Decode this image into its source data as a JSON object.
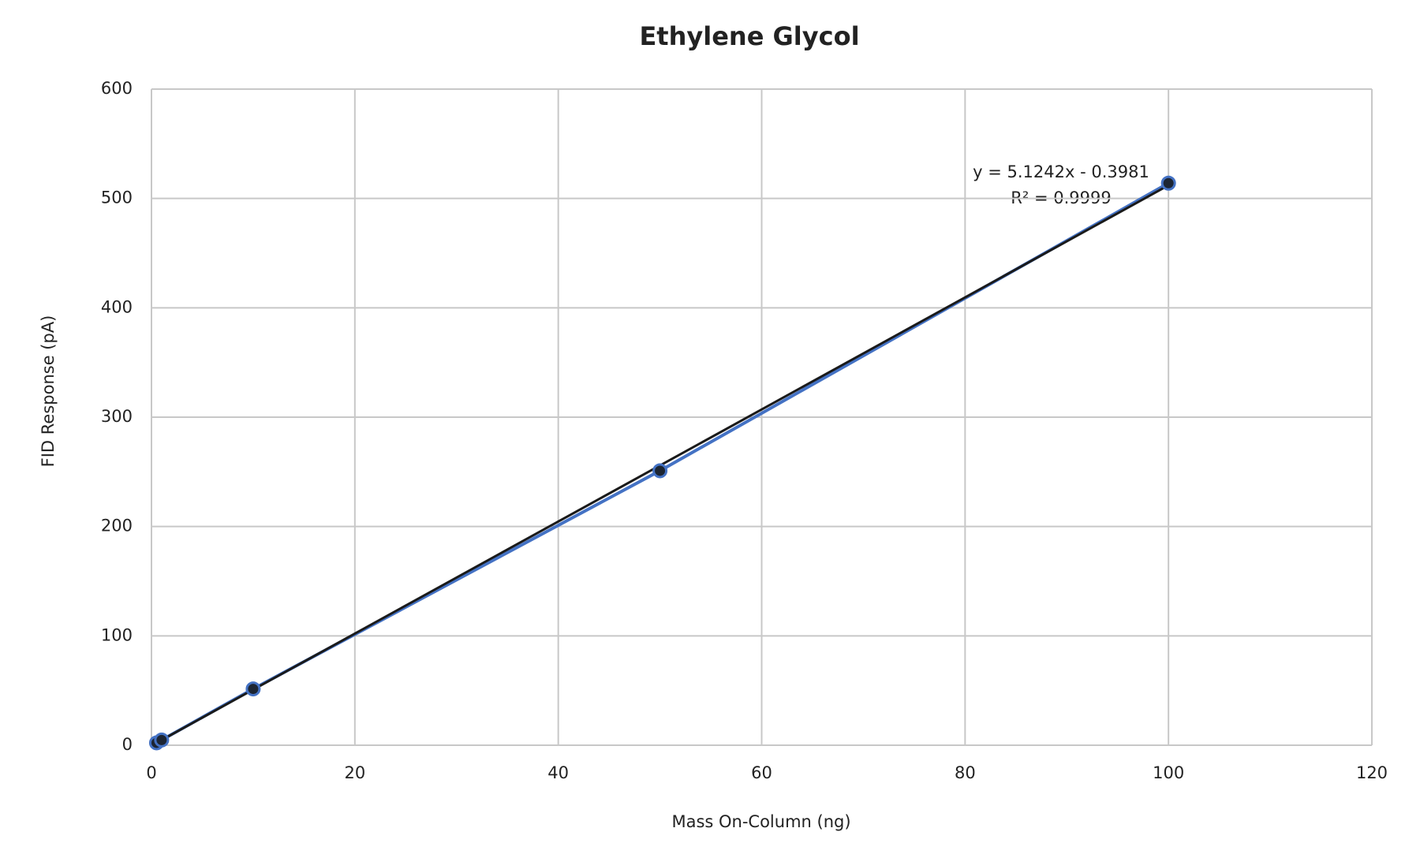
{
  "chart_data": {
    "type": "scatter",
    "title": "Ethylene Glycol",
    "x_label": "Mass On-Column (ng)",
    "y_label": "FID Response (pA)",
    "x": [
      0.5,
      1,
      10,
      50,
      100
    ],
    "series": [
      {
        "color": "#4472c4",
        "values": [
          2.2,
          4.8,
          51.5,
          251,
          514
        ]
      }
    ],
    "trendline": {
      "slope": 5.1242,
      "intercept": -0.3981,
      "color": "#1a1a1a"
    },
    "annotations": [
      "y = 5.1242x - 0.3981",
      "R² = 0.9999"
    ],
    "xlim": [
      0,
      120
    ],
    "xticks": [
      0,
      20,
      40,
      60,
      80,
      100,
      120
    ],
    "ylim": [
      0,
      600
    ],
    "yticks": [
      0,
      100,
      200,
      300,
      400,
      500,
      600
    ],
    "grid": true
  }
}
